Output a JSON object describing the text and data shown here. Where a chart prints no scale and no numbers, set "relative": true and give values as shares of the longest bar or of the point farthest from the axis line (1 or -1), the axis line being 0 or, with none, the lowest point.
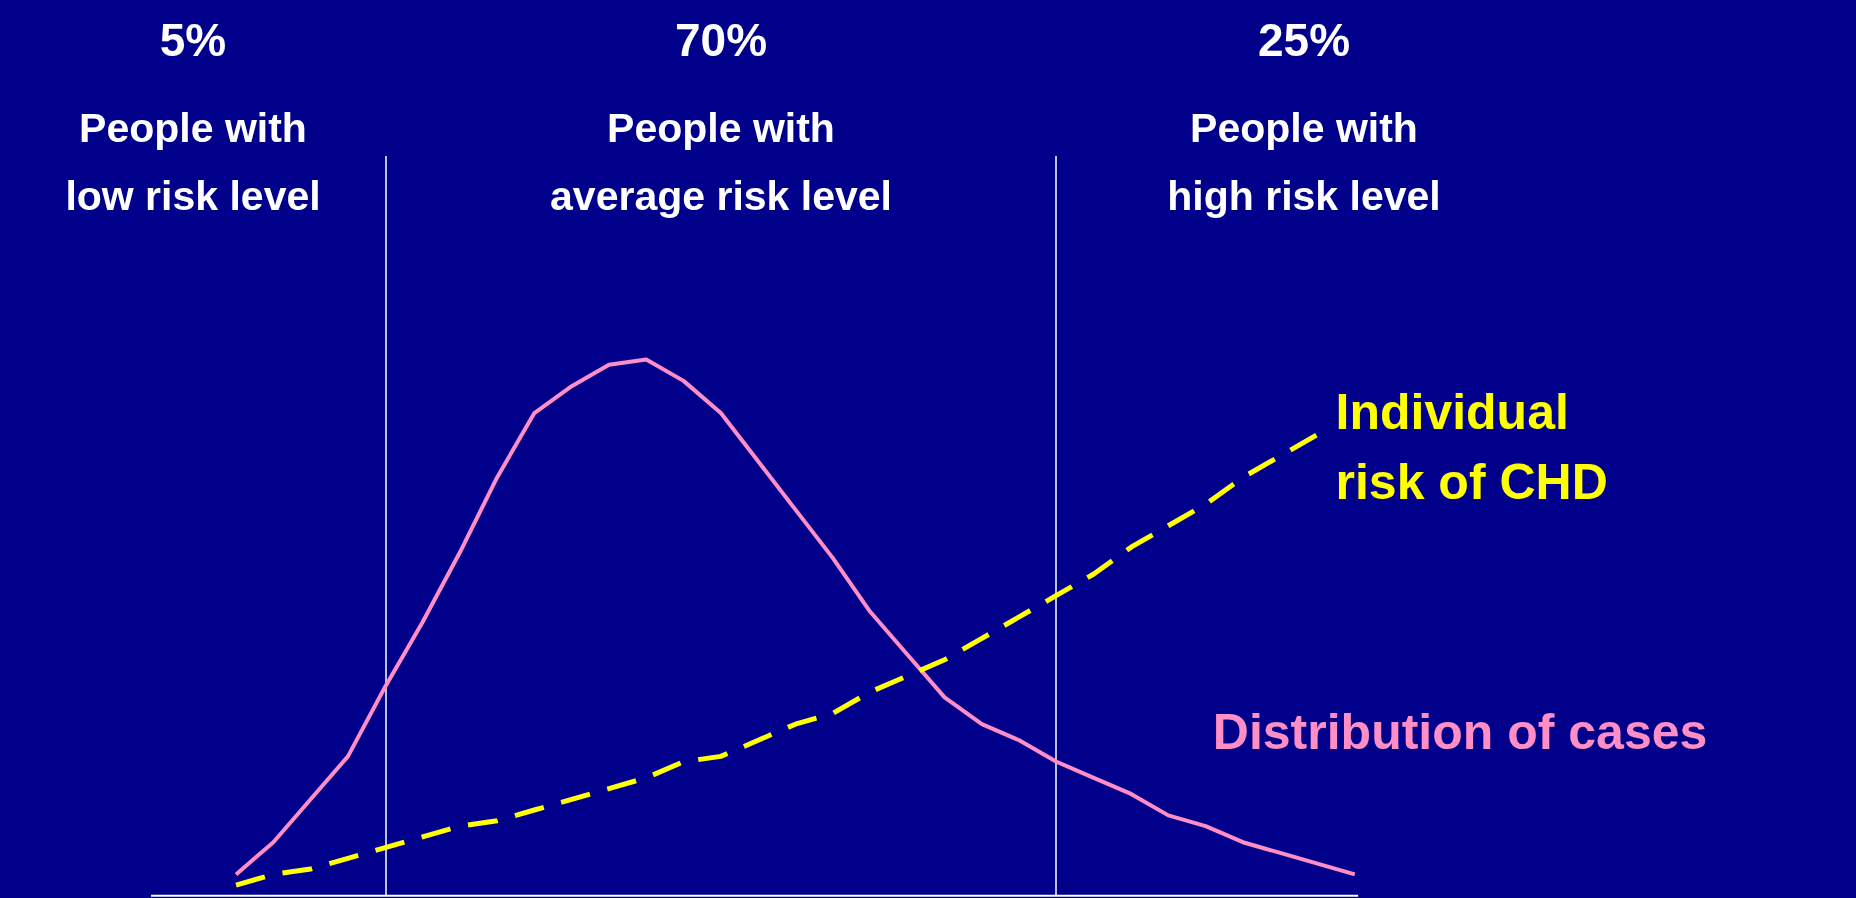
{
  "chart_data": {
    "type": "line",
    "relative": true,
    "categories": [
      null,
      null,
      null,
      null,
      null,
      null,
      null,
      null,
      null,
      null,
      null,
      null,
      null,
      null,
      null,
      null,
      null,
      null,
      null,
      null,
      null,
      null,
      null,
      null,
      null,
      null,
      null,
      null,
      null,
      null,
      null
    ],
    "annotations": [
      "5%",
      "People with\nlow risk level",
      "70%",
      "People with\naverage risk level",
      "25%",
      "People with\nhigh risk level"
    ],
    "series": [
      {
        "name": "Distribution of cases",
        "color": "#ff8ec6",
        "line_style": "solid",
        "values": [
          0.04,
          0.1,
          0.18,
          0.26,
          0.39,
          0.51,
          0.64,
          0.78,
          0.9,
          0.95,
          0.99,
          1.0,
          0.96,
          0.9,
          0.81,
          0.72,
          0.63,
          0.53,
          0.45,
          0.37,
          0.32,
          0.29,
          0.25,
          0.22,
          0.19,
          0.15,
          0.13,
          0.1,
          0.08,
          0.06,
          0.04
        ]
      },
      {
        "name": "Individual\nrisk of CHD",
        "color": "#ffff00",
        "line_style": "dashed",
        "values": [
          0.02,
          0.04,
          0.05,
          0.07,
          0.09,
          0.11,
          0.13,
          0.14,
          0.16,
          0.18,
          0.2,
          0.22,
          0.25,
          0.26,
          0.29,
          0.32,
          0.34,
          0.38,
          0.41,
          0.44,
          0.48,
          0.52,
          0.56,
          0.6,
          0.65,
          0.69,
          0.73,
          0.78,
          0.82,
          0.86,
          null
        ]
      }
    ]
  }
}
